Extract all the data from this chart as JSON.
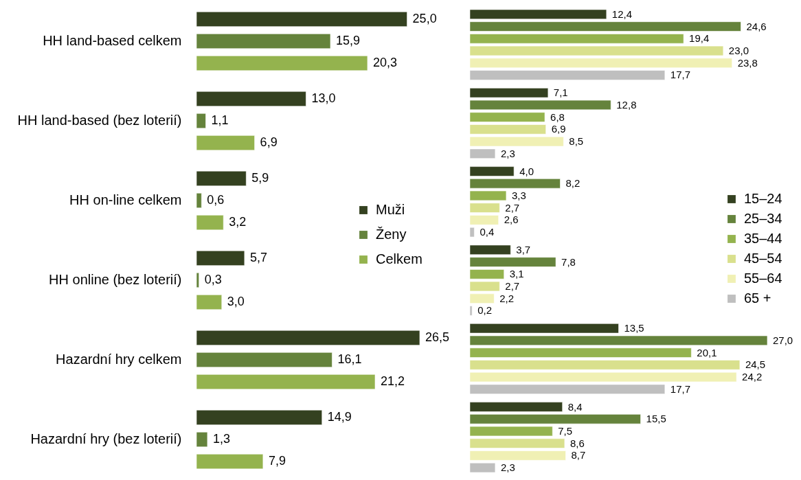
{
  "chart_data": [
    {
      "type": "bar",
      "orientation": "horizontal",
      "categories": [
        "HH land-based celkem",
        "HH land-based (bez loterií)",
        "HH on-line celkem",
        "HH online (bez loterií)",
        "Hazardní hry celkem",
        "Hazardní hry (bez loterií)"
      ],
      "tick_labels": "y",
      "legend": "right",
      "series": [
        {
          "name": "Muži",
          "color": "#344120",
          "values": [
            25.0,
            13.0,
            5.9,
            5.7,
            26.5,
            14.9
          ],
          "value_labels": [
            "25,0",
            "13,0",
            "5,9",
            "5,7",
            "26,5",
            "14,9"
          ]
        },
        {
          "name": "Ženy",
          "color": "#65833c",
          "values": [
            15.9,
            1.1,
            0.6,
            0.3,
            16.1,
            1.3
          ],
          "value_labels": [
            "15,9",
            "1,1",
            "0,6",
            "0,3",
            "16,1",
            "1,3"
          ]
        },
        {
          "name": "Celkem",
          "color": "#94b34e",
          "values": [
            20.3,
            6.9,
            3.2,
            3.0,
            21.2,
            7.9
          ],
          "value_labels": [
            "20,3",
            "6,9",
            "3,2",
            "3,0",
            "21,2",
            "7,9"
          ]
        }
      ]
    },
    {
      "type": "bar",
      "orientation": "horizontal",
      "categories": [
        null,
        null,
        null,
        null,
        null,
        null
      ],
      "tick_labels": false,
      "legend": "right",
      "series": [
        {
          "name": "15–24",
          "color": "#344120",
          "values": [
            12.4,
            7.1,
            4.0,
            3.7,
            13.5,
            8.4
          ],
          "value_labels": [
            "12,4",
            "7,1",
            "4,0",
            "3,7",
            "13,5",
            "8,4"
          ]
        },
        {
          "name": "25–34",
          "color": "#65833c",
          "values": [
            24.6,
            12.8,
            8.2,
            7.8,
            27.0,
            15.5
          ],
          "value_labels": [
            "24,6",
            "12,8",
            "8,2",
            "7,8",
            "27,0",
            "15,5"
          ]
        },
        {
          "name": "35–44",
          "color": "#94b34e",
          "values": [
            19.4,
            6.8,
            3.3,
            3.1,
            20.1,
            7.5
          ],
          "value_labels": [
            "19,4",
            "6,8",
            "3,3",
            "3,1",
            "20,1",
            "7,5"
          ]
        },
        {
          "name": "45–54",
          "color": "#d9e08d",
          "values": [
            23.0,
            6.9,
            2.7,
            2.7,
            24.5,
            8.6
          ],
          "value_labels": [
            "23,0",
            "6,9",
            "2,7",
            "2,7",
            "24,5",
            "8,6"
          ]
        },
        {
          "name": "55–64",
          "color": "#f0f0b4",
          "values": [
            23.8,
            8.5,
            2.6,
            2.2,
            24.2,
            8.7
          ],
          "value_labels": [
            "23,8",
            "8,5",
            "2,6",
            "2,2",
            "24,2",
            "8,7"
          ]
        },
        {
          "name": "65 +",
          "color": "#bfbfbf",
          "values": [
            17.7,
            2.3,
            0.4,
            0.2,
            17.7,
            2.3
          ],
          "value_labels": [
            "17,7",
            "2,3",
            "0,4",
            "0,2",
            "17,7",
            "2,3"
          ]
        }
      ]
    }
  ]
}
